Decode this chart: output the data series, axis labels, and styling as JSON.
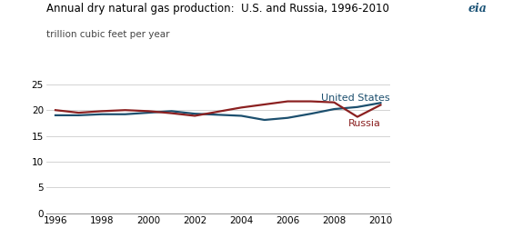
{
  "title": "Annual dry natural gas production:  U.S. and Russia, 1996-2010",
  "subtitle": "trillion cubic feet per year",
  "years": [
    1996,
    1997,
    1998,
    1999,
    2000,
    2001,
    2002,
    2003,
    2004,
    2005,
    2006,
    2007,
    2008,
    2009,
    2010
  ],
  "us_data": [
    19.0,
    19.0,
    19.2,
    19.2,
    19.5,
    19.8,
    19.3,
    19.1,
    18.9,
    18.1,
    18.5,
    19.3,
    20.2,
    20.6,
    21.4
  ],
  "russia_data": [
    20.0,
    19.5,
    19.8,
    20.0,
    19.8,
    19.4,
    18.9,
    19.7,
    20.5,
    21.1,
    21.7,
    21.7,
    21.5,
    18.7,
    21.0
  ],
  "us_color": "#1c4f6e",
  "russia_color": "#8b2020",
  "us_label": "United States",
  "russia_label": "Russia",
  "ylim": [
    0,
    25
  ],
  "yticks": [
    0,
    5,
    10,
    15,
    20,
    25
  ],
  "xticks": [
    1996,
    1998,
    2000,
    2002,
    2004,
    2006,
    2008,
    2010
  ],
  "grid_color": "#cccccc",
  "line_width": 1.6,
  "bg_color": "#ffffff",
  "title_fontsize": 8.5,
  "subtitle_fontsize": 7.5,
  "label_fontsize": 8.0,
  "tick_fontsize": 7.5
}
